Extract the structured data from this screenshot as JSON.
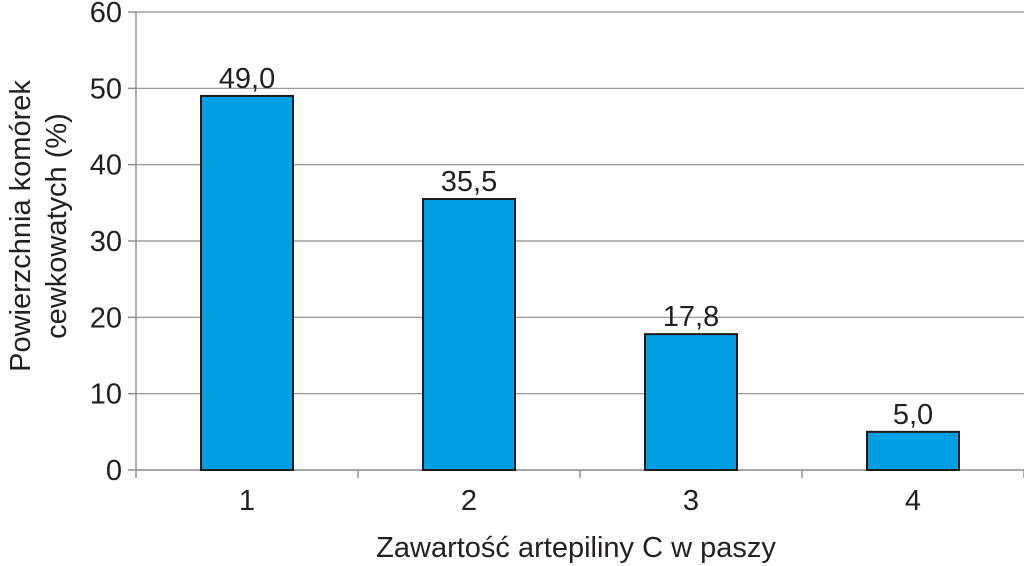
{
  "chart_data": {
    "type": "bar",
    "categories": [
      "1",
      "2",
      "3",
      "4"
    ],
    "values": [
      49.0,
      35.5,
      17.8,
      5.0
    ],
    "data_labels": [
      "49,0",
      "35,5",
      "17,8",
      "5,0"
    ],
    "xlabel": "Zawartość artepiliny C w paszy",
    "ylabel_lines": [
      "Powierzchnia komórek",
      "cewkowatych (%)"
    ],
    "ylim": [
      0,
      60
    ],
    "yticks": [
      0,
      10,
      20,
      30,
      40,
      50,
      60
    ],
    "ytick_labels": [
      "0",
      "10",
      "20",
      "30",
      "40",
      "50",
      "60"
    ],
    "grid": true,
    "legend": "none",
    "bar_color": "#009fe3"
  }
}
